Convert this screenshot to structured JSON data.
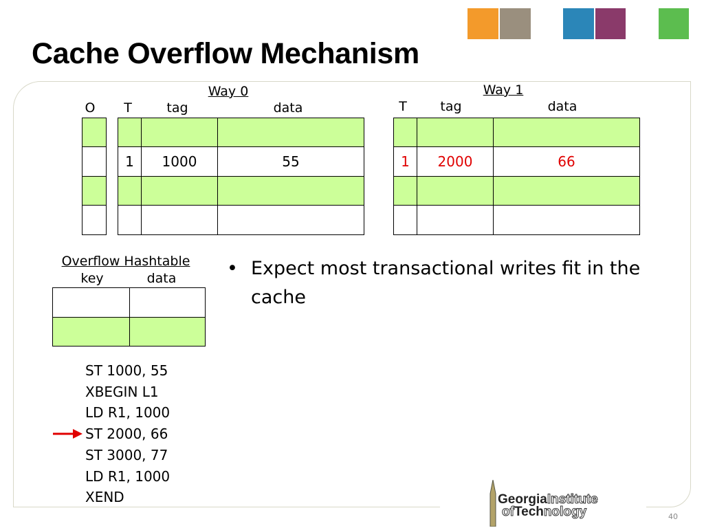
{
  "title": "Cache Overflow Mechanism",
  "way0": {
    "label": "Way 0",
    "headers": [
      "O",
      "T",
      "tag",
      "data"
    ],
    "rows": [
      [
        null,
        null,
        null,
        null
      ],
      [
        null,
        1,
        1000,
        55
      ],
      [
        null,
        null,
        null,
        null
      ],
      [
        null,
        null,
        null,
        null
      ]
    ]
  },
  "way1": {
    "label": "Way 1",
    "headers": [
      "T",
      "tag",
      "data"
    ],
    "rows": [
      [
        null,
        null,
        null
      ],
      [
        1,
        2000,
        66
      ],
      [
        null,
        null,
        null
      ],
      [
        null,
        null,
        null
      ]
    ]
  },
  "overflow": {
    "label": "Overflow Hashtable",
    "headers": [
      "key",
      "data"
    ],
    "rows": [
      [
        null,
        null
      ],
      [
        null,
        null
      ]
    ]
  },
  "bullet": "Expect most transactional writes fit in the cache",
  "code": [
    "ST 1000, 55",
    "XBEGIN L1",
    "LD R1, 1000",
    "ST 2000, 66",
    "ST 3000, 77",
    "LD R1, 1000",
    "XEND"
  ],
  "logo": {
    "line1": [
      "Georgia",
      "Institute"
    ],
    "line2": [
      "of",
      "Tech",
      "nology"
    ]
  },
  "page_number": "40"
}
